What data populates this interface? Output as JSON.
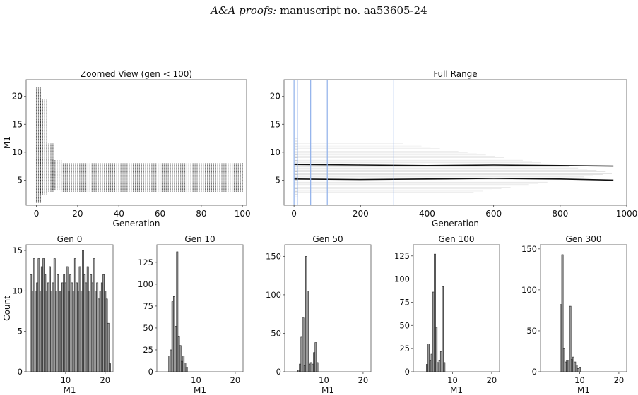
{
  "header": {
    "journal": "A&A proofs:",
    "manuscript": "manuscript no. aa53605-24"
  },
  "chart_data": [
    {
      "type": "scatter",
      "title": "Zoomed View (gen < 100)",
      "xlabel": "Generation",
      "ylabel": "M1",
      "xlim": [
        -5,
        102
      ],
      "ylim": [
        0.5,
        23
      ],
      "xticks": [
        0,
        20,
        40,
        60,
        80,
        100
      ],
      "yticks": [
        5,
        10,
        15,
        20
      ],
      "grid": false,
      "bands": [
        {
          "from_gen": 0,
          "to_gen": 2,
          "low": 1.0,
          "high": 21.5
        },
        {
          "from_gen": 2,
          "to_gen": 5,
          "low": 2.5,
          "high": 19.5
        },
        {
          "from_gen": 5,
          "to_gen": 8,
          "low": 3.0,
          "high": 11.5
        },
        {
          "from_gen": 8,
          "to_gen": 12,
          "low": 3.2,
          "high": 8.5
        },
        {
          "from_gen": 12,
          "to_gen": 100,
          "low": 3.0,
          "high": 8.0
        }
      ],
      "dense_levels": [
        5.0,
        5.5,
        6.0,
        7.5,
        8.0
      ]
    },
    {
      "type": "line",
      "title": "Full Range",
      "xlabel": "Generation",
      "ylabel": "",
      "xlim": [
        -30,
        1000
      ],
      "ylim": [
        0.5,
        23
      ],
      "xticks": [
        0,
        200,
        400,
        600,
        800,
        1000
      ],
      "yticks": [
        5,
        10,
        15,
        20
      ],
      "grid": false,
      "vlines": [
        0,
        10,
        50,
        100,
        300
      ],
      "tracks": [
        {
          "name": "",
          "points": [
            [
              0,
              5.2
            ],
            [
              200,
              5.1
            ],
            [
              400,
              5.2
            ],
            [
              600,
              5.3
            ],
            [
              800,
              5.2
            ],
            [
              960,
              5.0
            ]
          ]
        },
        {
          "name": "",
          "points": [
            [
              0,
              7.8
            ],
            [
              200,
              7.7
            ],
            [
              400,
              7.6
            ],
            [
              600,
              7.7
            ],
            [
              800,
              7.6
            ],
            [
              960,
              7.5
            ]
          ]
        }
      ],
      "spread": {
        "low": 2.8,
        "high": 11.8
      }
    },
    {
      "type": "bar",
      "title": "Gen 0",
      "xlabel": "M1",
      "ylabel": "Count",
      "xlim": [
        0,
        22
      ],
      "ylim": [
        0,
        15.7
      ],
      "xticks": [
        10,
        20
      ],
      "yticks": [
        0,
        5,
        10,
        15
      ],
      "bin_start": 1,
      "bin_width": 0.4,
      "values": [
        12,
        10,
        14,
        10,
        11,
        14,
        10,
        13,
        14,
        12,
        10,
        11,
        13,
        10,
        11,
        14,
        10,
        12,
        10,
        10,
        11,
        12,
        11,
        13,
        10,
        12,
        11,
        10,
        14,
        11,
        10,
        13,
        10,
        15,
        12,
        11,
        13,
        10,
        12,
        11,
        14,
        10,
        11,
        9,
        10,
        11,
        12,
        10,
        9,
        6,
        1
      ]
    },
    {
      "type": "bar",
      "title": "Gen 10",
      "xlabel": "M1",
      "ylabel": "",
      "xlim": [
        0,
        22
      ],
      "ylim": [
        0,
        145
      ],
      "xticks": [
        10,
        20
      ],
      "yticks": [
        0,
        25,
        50,
        75,
        100,
        125
      ],
      "bin_start": 3,
      "bin_width": 0.4,
      "values": [
        18,
        25,
        80,
        86,
        52,
        137,
        40,
        30,
        12,
        18,
        10,
        5
      ]
    },
    {
      "type": "bar",
      "title": "Gen 50",
      "xlabel": "M1",
      "ylabel": "",
      "xlim": [
        0,
        22
      ],
      "ylim": [
        0,
        165
      ],
      "xticks": [
        10,
        20
      ],
      "yticks": [
        0,
        50,
        100,
        150
      ],
      "bin_start": 3.3,
      "bin_width": 0.4,
      "values": [
        2,
        10,
        45,
        70,
        8,
        150,
        105,
        10,
        12,
        10,
        25,
        38,
        12
      ]
    },
    {
      "type": "bar",
      "title": "Gen 100",
      "xlabel": "M1",
      "ylabel": "",
      "xlim": [
        0,
        22
      ],
      "ylim": [
        0,
        137
      ],
      "xticks": [
        10,
        20
      ],
      "yticks": [
        0,
        25,
        50,
        75,
        100,
        125
      ],
      "bin_start": 3.3,
      "bin_width": 0.4,
      "values": [
        8,
        30,
        12,
        19,
        86,
        127,
        48,
        10,
        12,
        22,
        92,
        10
      ]
    },
    {
      "type": "bar",
      "title": "Gen 300",
      "xlabel": "M1",
      "ylabel": "",
      "xlim": [
        0,
        22
      ],
      "ylim": [
        0,
        155
      ],
      "xticks": [
        10,
        20
      ],
      "yticks": [
        0,
        50,
        100,
        150
      ],
      "bin_start": 5.0,
      "bin_width": 0.4,
      "values": [
        82,
        143,
        28,
        12,
        14,
        14,
        80,
        15,
        18,
        12,
        8,
        4,
        5
      ]
    }
  ]
}
